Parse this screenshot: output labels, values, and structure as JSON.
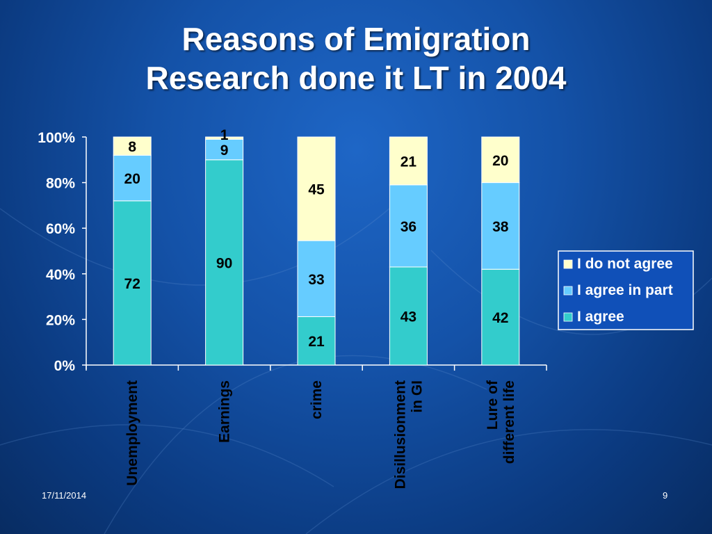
{
  "slide": {
    "title_line1": "Reasons of Emigration",
    "title_line2": "Research done it LT in 2004",
    "date": "17/11/2014",
    "page_number": "9"
  },
  "chart_data": {
    "type": "bar",
    "stacked": true,
    "percent_stacked": true,
    "categories": [
      "Unemployment",
      "Earnings",
      "crime",
      "Disillusionment in GI",
      "Lure of different life"
    ],
    "series": [
      {
        "name": "I agree",
        "values": [
          72,
          90,
          21,
          43,
          42
        ],
        "color": "#33cccc"
      },
      {
        "name": "I agree in part",
        "values": [
          20,
          9,
          33,
          36,
          38
        ],
        "color": "#66ccff"
      },
      {
        "name": "I do not agree",
        "values": [
          8,
          1,
          45,
          21,
          20
        ],
        "color": "#ffffcc"
      }
    ],
    "y_ticks": [
      "0%",
      "20%",
      "40%",
      "60%",
      "80%",
      "100%"
    ],
    "ylim": [
      0,
      100
    ],
    "legend_position": "right",
    "grid": false
  }
}
